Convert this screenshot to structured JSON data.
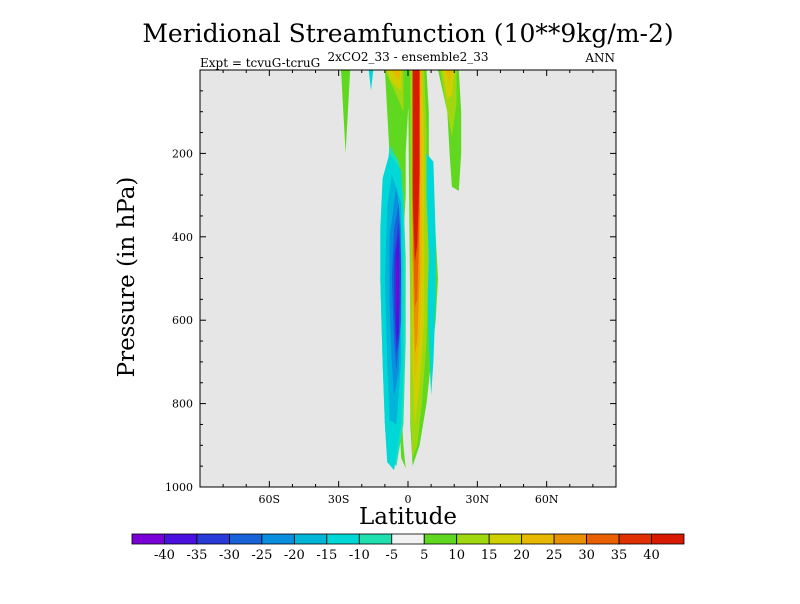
{
  "chart_data": {
    "type": "heatmap",
    "title": "Meridional Streamfunction (10**9kg/m-2)",
    "subtitle_left": "Expt = tcvuG-tcruG",
    "subtitle_center": "2xCO2_33 - ensemble2_33",
    "subtitle_right": "ANN",
    "xlabel": "Latitude",
    "ylabel": "Pressure (in hPa)",
    "xlim": [
      -90,
      90
    ],
    "ylim": [
      0,
      1000
    ],
    "y_inverted": true,
    "x_ticks": [
      {
        "value": -60,
        "label": "60S"
      },
      {
        "value": -30,
        "label": "30S"
      },
      {
        "value": 0,
        "label": "0"
      },
      {
        "value": 30,
        "label": "30N"
      },
      {
        "value": 60,
        "label": "60N"
      }
    ],
    "y_ticks": [
      200,
      400,
      600,
      800,
      1000
    ],
    "background_color": "#e6e6e6",
    "colorbar": {
      "labels": [
        "-40",
        "-35",
        "-30",
        "-25",
        "-20",
        "-15",
        "-10",
        "-5",
        "5",
        "10",
        "15",
        "20",
        "25",
        "30",
        "35",
        "40"
      ],
      "colors": [
        "#7a00d8",
        "#4a10e0",
        "#2a3ad8",
        "#1a62d8",
        "#0a8ee0",
        "#00b6d8",
        "#00d8d8",
        "#20e0b0",
        "#f2f2f2",
        "#60d820",
        "#a0d810",
        "#d0d000",
        "#e8b800",
        "#e89000",
        "#e86000",
        "#e03000",
        "#d81a00"
      ]
    },
    "fields": [
      {
        "level": "10",
        "color": "#60d820",
        "polygon": [
          [
            -25,
            0
          ],
          [
            -26,
            100
          ],
          [
            -27,
            200
          ],
          [
            -28,
            100
          ],
          [
            -29,
            0
          ]
        ]
      },
      {
        "level": "-10",
        "color": "#00d8d8",
        "polygon": [
          [
            -15,
            0
          ],
          [
            -16,
            50
          ],
          [
            -17,
            0
          ]
        ]
      },
      {
        "level": "10",
        "color": "#60d820",
        "polygon": [
          [
            -10,
            0
          ],
          [
            0,
            0
          ],
          [
            1,
            50
          ],
          [
            0,
            100
          ],
          [
            -1,
            200
          ],
          [
            -1,
            300
          ],
          [
            -2,
            400
          ],
          [
            -3,
            600
          ],
          [
            -3,
            800
          ],
          [
            -2,
            900
          ],
          [
            -1,
            955
          ],
          [
            -3,
            930
          ],
          [
            -4,
            800
          ],
          [
            -5,
            600
          ],
          [
            -5,
            400
          ],
          [
            -6,
            300
          ],
          [
            -8,
            200
          ],
          [
            -9,
            100
          ]
        ]
      },
      {
        "level": "-5",
        "color": "#20e0b0",
        "polygon": [
          [
            -8,
            180
          ],
          [
            -4,
            220
          ],
          [
            -2,
            300
          ],
          [
            -1,
            450
          ],
          [
            -1,
            650
          ],
          [
            -2,
            850
          ],
          [
            -5,
            950
          ],
          [
            -9,
            930
          ],
          [
            -10,
            850
          ],
          [
            -11,
            700
          ],
          [
            -12,
            500
          ],
          [
            -10,
            350
          ],
          [
            -9,
            250
          ]
        ]
      },
      {
        "level": "-10",
        "color": "#00d8d8",
        "polygon": [
          [
            -8,
            200
          ],
          [
            -3,
            240
          ],
          [
            -2,
            350
          ],
          [
            -2,
            500
          ],
          [
            -2,
            700
          ],
          [
            -3,
            850
          ],
          [
            -6,
            960
          ],
          [
            -9,
            940
          ],
          [
            -10,
            850
          ],
          [
            -11,
            700
          ],
          [
            -12,
            500
          ],
          [
            -12,
            380
          ],
          [
            -11,
            260
          ]
        ]
      },
      {
        "level": "-15",
        "color": "#00b6d8",
        "polygon": [
          [
            -7,
            250
          ],
          [
            -3,
            320
          ],
          [
            -3,
            500
          ],
          [
            -3,
            700
          ],
          [
            -5,
            850
          ],
          [
            -8,
            840
          ],
          [
            -9,
            700
          ],
          [
            -10,
            500
          ],
          [
            -9,
            330
          ]
        ]
      },
      {
        "level": "-20",
        "color": "#0a8ee0",
        "polygon": [
          [
            -5,
            280
          ],
          [
            -3,
            380
          ],
          [
            -3,
            560
          ],
          [
            -4,
            720
          ],
          [
            -6,
            780
          ],
          [
            -7,
            700
          ],
          [
            -8,
            550
          ],
          [
            -8,
            400
          ]
        ]
      },
      {
        "level": "-25",
        "color": "#1a62d8",
        "polygon": [
          [
            -4,
            320
          ],
          [
            -3,
            450
          ],
          [
            -3,
            600
          ],
          [
            -5,
            720
          ],
          [
            -6,
            650
          ],
          [
            -7,
            500
          ],
          [
            -6,
            380
          ]
        ]
      },
      {
        "level": "-30",
        "color": "#2a3ad8",
        "polygon": [
          [
            -4,
            360
          ],
          [
            -3,
            480
          ],
          [
            -4,
            650
          ],
          [
            -5,
            680
          ],
          [
            -6,
            560
          ],
          [
            -6,
            450
          ]
        ]
      },
      {
        "level": "-35",
        "color": "#4a10e0",
        "polygon": [
          [
            -4,
            390
          ],
          [
            -4,
            520
          ],
          [
            -4,
            630
          ],
          [
            -5,
            650
          ],
          [
            -5,
            520
          ],
          [
            -5,
            430
          ]
        ]
      },
      {
        "level": "-40",
        "color": "#7a00d8",
        "polygon": [
          [
            -4,
            430
          ],
          [
            -4,
            550
          ],
          [
            -4,
            610
          ],
          [
            -5,
            560
          ],
          [
            -5,
            470
          ]
        ]
      },
      {
        "level": "10",
        "color": "#60d820",
        "polygon": [
          [
            0,
            0
          ],
          [
            8,
            0
          ],
          [
            9,
            100
          ],
          [
            9,
            200
          ],
          [
            10,
            300
          ],
          [
            12,
            400
          ],
          [
            13,
            500
          ],
          [
            12,
            600
          ],
          [
            10,
            700
          ],
          [
            8,
            800
          ],
          [
            5,
            900
          ],
          [
            2,
            950
          ],
          [
            1,
            850
          ],
          [
            1,
            600
          ]
        ]
      },
      {
        "level": "-10",
        "color": "#00d8d8",
        "polygon": [
          [
            8,
            200
          ],
          [
            11,
            220
          ],
          [
            12,
            400
          ],
          [
            12,
            550
          ],
          [
            11,
            700
          ],
          [
            10,
            780
          ],
          [
            9,
            650
          ],
          [
            8,
            450
          ]
        ]
      },
      {
        "level": "15",
        "color": "#a0d810",
        "polygon": [
          [
            1,
            0
          ],
          [
            7,
            0
          ],
          [
            8,
            150
          ],
          [
            8,
            300
          ],
          [
            9,
            450
          ],
          [
            8,
            650
          ],
          [
            6,
            800
          ],
          [
            4,
            900
          ],
          [
            2,
            930
          ],
          [
            1,
            800
          ]
        ]
      },
      {
        "level": "20",
        "color": "#d0d000",
        "polygon": [
          [
            2,
            0
          ],
          [
            6,
            0
          ],
          [
            7,
            200
          ],
          [
            7,
            400
          ],
          [
            7,
            600
          ],
          [
            5,
            750
          ],
          [
            3,
            850
          ],
          [
            2,
            700
          ]
        ]
      },
      {
        "level": "25",
        "color": "#e8b800",
        "polygon": [
          [
            2,
            0
          ],
          [
            6,
            0
          ],
          [
            6,
            250
          ],
          [
            6,
            450
          ],
          [
            5,
            650
          ],
          [
            3,
            750
          ],
          [
            2,
            550
          ]
        ]
      },
      {
        "level": "30",
        "color": "#e89000",
        "polygon": [
          [
            2,
            0
          ],
          [
            5,
            0
          ],
          [
            5,
            300
          ],
          [
            5,
            500
          ],
          [
            4,
            650
          ],
          [
            3,
            680
          ],
          [
            2,
            450
          ]
        ]
      },
      {
        "level": "35",
        "color": "#e86000",
        "polygon": [
          [
            2,
            0
          ],
          [
            5,
            0
          ],
          [
            5,
            350
          ],
          [
            4,
            550
          ],
          [
            3,
            570
          ],
          [
            2,
            350
          ]
        ]
      },
      {
        "level": "40",
        "color": "#d81a00",
        "polygon": [
          [
            2,
            0
          ],
          [
            5,
            0
          ],
          [
            5,
            250
          ],
          [
            4,
            420
          ],
          [
            3,
            460
          ],
          [
            2,
            300
          ]
        ]
      },
      {
        "level": "15",
        "color": "#a0d810",
        "polygon": [
          [
            -10,
            0
          ],
          [
            -2,
            0
          ],
          [
            -2,
            100
          ],
          [
            -5,
            60
          ]
        ]
      },
      {
        "level": "20",
        "color": "#d0d000",
        "polygon": [
          [
            -9,
            0
          ],
          [
            -3,
            0
          ],
          [
            -3,
            50
          ],
          [
            -7,
            30
          ]
        ]
      },
      {
        "level": "25",
        "color": "#e8b800",
        "polygon": [
          [
            -7,
            0
          ],
          [
            -3,
            0
          ],
          [
            -4,
            25
          ]
        ]
      },
      {
        "level": "10",
        "color": "#60d820",
        "polygon": [
          [
            13,
            0
          ],
          [
            22,
            0
          ],
          [
            23,
            100
          ],
          [
            23,
            200
          ],
          [
            22,
            290
          ],
          [
            19,
            280
          ],
          [
            18,
            200
          ],
          [
            17,
            100
          ]
        ]
      },
      {
        "level": "15",
        "color": "#a0d810",
        "polygon": [
          [
            14,
            0
          ],
          [
            21,
            0
          ],
          [
            21,
            80
          ],
          [
            19,
            160
          ],
          [
            17,
            100
          ]
        ]
      },
      {
        "level": "20",
        "color": "#d0d000",
        "polygon": [
          [
            15,
            0
          ],
          [
            20,
            0
          ],
          [
            19,
            60
          ],
          [
            17,
            70
          ]
        ]
      },
      {
        "level": "25",
        "color": "#e8b800",
        "polygon": [
          [
            16,
            0
          ],
          [
            19,
            0
          ],
          [
            18,
            30
          ]
        ]
      }
    ]
  }
}
